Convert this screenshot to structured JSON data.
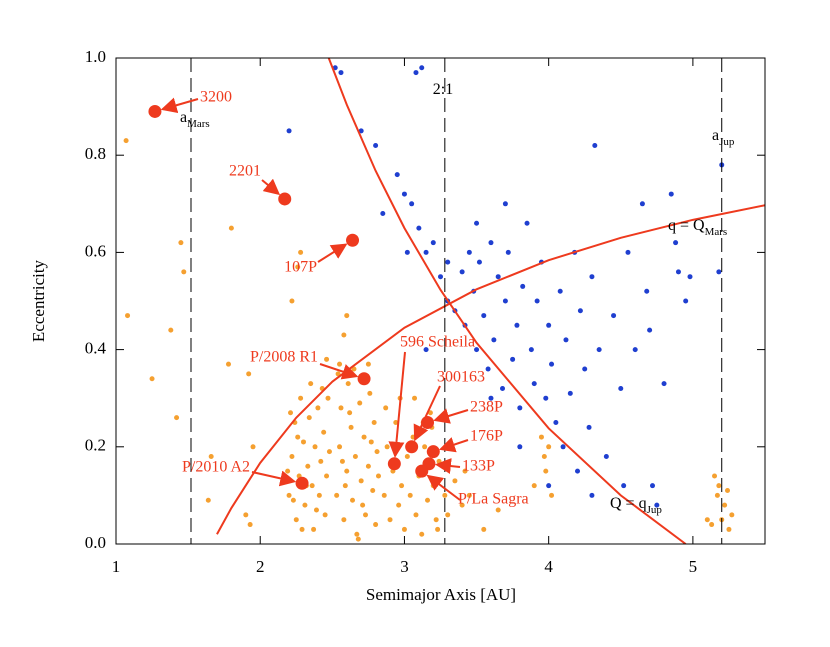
{
  "chart_data": {
    "type": "scatter",
    "xlabel": "Semimajor Axis [AU]",
    "ylabel": "Eccentricity",
    "xlim": [
      1,
      5.5
    ],
    "ylim": [
      0,
      1
    ],
    "xticks": [
      1,
      2,
      3,
      4,
      5
    ],
    "yticks": [
      {
        "value": 0,
        "label": "0.0"
      },
      0.2,
      0.4,
      0.6,
      0.8,
      {
        "value": 1,
        "label": "1.0"
      }
    ],
    "series": [
      {
        "color": "#f5a030",
        "x": [
          1.07,
          1.08,
          1.25,
          1.38,
          1.42,
          1.45,
          1.47,
          1.66,
          1.64,
          1.8,
          1.78,
          1.92,
          1.9,
          1.95,
          2.22,
          2.28,
          2.26,
          2.46,
          2.55,
          2.6,
          2.58,
          2.75,
          3.55,
          3.65,
          3.9,
          3.95,
          3.97,
          4.0,
          3.98,
          4.02,
          5.15,
          5.17,
          5.2,
          5.22,
          5.25,
          5.27,
          5.13,
          5.18,
          5.24,
          5.1,
          1.93,
          2.2,
          2.22,
          2.24,
          2.25,
          2.27,
          2.28,
          2.3,
          2.31,
          2.33,
          2.34,
          2.36,
          2.37,
          2.38,
          2.4,
          2.41,
          2.42,
          2.44,
          2.45,
          2.46,
          2.47,
          2.21,
          2.23,
          2.29,
          2.35,
          2.39,
          2.43,
          2.26,
          2.32,
          2.19,
          2.48,
          2.53,
          2.55,
          2.56,
          2.58,
          2.6,
          2.61,
          2.63,
          2.64,
          2.66,
          2.67,
          2.69,
          2.7,
          2.72,
          2.73,
          2.75,
          2.76,
          2.78,
          2.79,
          2.8,
          2.81,
          2.54,
          2.59,
          2.65,
          2.71,
          2.77,
          2.62,
          2.68,
          2.57,
          2.74,
          2.82,
          2.86,
          2.88,
          2.9,
          2.92,
          2.94,
          2.96,
          2.98,
          3.0,
          3.02,
          3.04,
          3.06,
          3.08,
          3.1,
          3.12,
          3.14,
          3.16,
          3.18,
          3.2,
          3.22,
          3.24,
          2.87,
          2.97,
          3.07,
          3.13,
          3.19,
          3.23,
          3.28,
          3.3,
          3.35,
          3.4,
          3.42,
          3.45
        ],
        "values": [
          0.83,
          0.47,
          0.34,
          0.44,
          0.26,
          0.62,
          0.56,
          0.18,
          0.09,
          0.65,
          0.37,
          0.35,
          0.06,
          0.2,
          0.5,
          0.6,
          0.57,
          0.38,
          0.37,
          0.47,
          0.43,
          0.37,
          0.03,
          0.07,
          0.12,
          0.22,
          0.18,
          0.2,
          0.15,
          0.1,
          0.14,
          0.1,
          0.05,
          0.08,
          0.03,
          0.06,
          0.04,
          0.12,
          0.11,
          0.05,
          0.04,
          0.1,
          0.18,
          0.25,
          0.05,
          0.14,
          0.3,
          0.21,
          0.08,
          0.16,
          0.26,
          0.12,
          0.03,
          0.2,
          0.28,
          0.1,
          0.17,
          0.23,
          0.06,
          0.14,
          0.3,
          0.27,
          0.09,
          0.03,
          0.33,
          0.07,
          0.32,
          0.22,
          0.12,
          0.15,
          0.19,
          0.1,
          0.2,
          0.28,
          0.05,
          0.15,
          0.33,
          0.24,
          0.09,
          0.18,
          0.02,
          0.29,
          0.13,
          0.22,
          0.06,
          0.16,
          0.31,
          0.11,
          0.25,
          0.04,
          0.19,
          0.35,
          0.12,
          0.36,
          0.08,
          0.21,
          0.27,
          0.01,
          0.17,
          0.34,
          0.14,
          0.1,
          0.2,
          0.05,
          0.15,
          0.25,
          0.08,
          0.12,
          0.03,
          0.18,
          0.1,
          0.22,
          0.06,
          0.14,
          0.02,
          0.2,
          0.09,
          0.27,
          0.12,
          0.05,
          0.17,
          0.28,
          0.3,
          0.3,
          0.25,
          0.24,
          0.03,
          0.1,
          0.06,
          0.13,
          0.08,
          0.15,
          0.1
        ]
      },
      {
        "color": "#1f3fd0",
        "x": [
          2.52,
          2.56,
          2.2,
          2.7,
          3.12,
          3.08,
          2.8,
          2.95,
          3.0,
          3.05,
          2.85,
          3.1,
          3.15,
          3.2,
          3.02,
          3.25,
          3.3,
          3.35,
          3.4,
          3.42,
          3.45,
          3.48,
          3.5,
          3.52,
          3.55,
          3.58,
          3.6,
          3.62,
          3.65,
          3.68,
          3.7,
          3.72,
          3.75,
          3.78,
          3.8,
          3.82,
          3.85,
          3.88,
          3.9,
          3.92,
          3.95,
          3.98,
          4.0,
          4.02,
          4.05,
          4.08,
          4.1,
          4.12,
          4.15,
          4.18,
          4.2,
          4.22,
          4.25,
          4.28,
          4.3,
          4.32,
          4.35,
          4.4,
          4.45,
          4.5,
          4.52,
          4.55,
          4.6,
          4.65,
          4.68,
          4.7,
          4.72,
          4.75,
          4.8,
          4.85,
          4.88,
          4.9,
          4.95,
          4.98,
          5.2,
          5.18,
          4.3,
          4.0,
          3.8,
          3.6,
          3.5,
          3.7,
          3.3,
          3.15
        ],
        "values": [
          0.98,
          0.97,
          0.85,
          0.85,
          0.98,
          0.97,
          0.82,
          0.76,
          0.72,
          0.7,
          0.68,
          0.65,
          0.6,
          0.62,
          0.6,
          0.55,
          0.5,
          0.48,
          0.56,
          0.45,
          0.6,
          0.52,
          0.4,
          0.58,
          0.47,
          0.36,
          0.62,
          0.42,
          0.55,
          0.32,
          0.5,
          0.6,
          0.38,
          0.45,
          0.28,
          0.53,
          0.66,
          0.4,
          0.33,
          0.5,
          0.58,
          0.3,
          0.45,
          0.37,
          0.25,
          0.52,
          0.2,
          0.42,
          0.31,
          0.6,
          0.15,
          0.48,
          0.36,
          0.24,
          0.55,
          0.82,
          0.4,
          0.18,
          0.47,
          0.32,
          0.12,
          0.6,
          0.4,
          0.7,
          0.52,
          0.44,
          0.12,
          0.08,
          0.33,
          0.72,
          0.62,
          0.56,
          0.5,
          0.55,
          0.78,
          0.56,
          0.1,
          0.12,
          0.2,
          0.3,
          0.66,
          0.7,
          0.58,
          0.4
        ]
      }
    ],
    "objects": {
      "color": "#ee3a1e",
      "labels": [
        "3200",
        "2201",
        "107P",
        "P/2008 R1",
        "596 Scheila",
        "300163",
        "238P",
        "176P",
        "133P",
        "P/La Sagra",
        "P/2010 A2"
      ],
      "x": [
        1.27,
        2.17,
        2.64,
        2.72,
        2.93,
        3.05,
        3.16,
        3.2,
        3.17,
        3.12,
        2.29
      ],
      "values": [
        0.89,
        0.71,
        0.625,
        0.34,
        0.165,
        0.2,
        0.25,
        0.19,
        0.165,
        0.15,
        0.125
      ]
    },
    "curves": [
      {
        "label": "q = Q",
        "sub": "Mars",
        "color": "#ee3a1e",
        "x": [
          1.7,
          1.8,
          2.0,
          2.25,
          2.5,
          3.0,
          3.5,
          4.0,
          4.5,
          5.0,
          5.5
        ],
        "values": [
          0.02,
          0.074,
          0.167,
          0.26,
          0.334,
          0.445,
          0.524,
          0.584,
          0.63,
          0.667,
          0.697
        ]
      },
      {
        "label": "Q = q",
        "sub": "Jup",
        "color": "#ee3a1e",
        "x": [
          2.475,
          2.6,
          2.8,
          3.0,
          3.25,
          3.5,
          4.0,
          4.5,
          4.95
        ],
        "values": [
          1.0,
          0.904,
          0.768,
          0.65,
          0.523,
          0.414,
          0.238,
          0.1,
          0
        ]
      }
    ],
    "vlines": [
      {
        "x": 1.52,
        "label": "a",
        "sub": "Mars"
      },
      {
        "x": 3.28,
        "label": "2:1"
      },
      {
        "x": 5.2,
        "label": "a",
        "sub": "Jup"
      }
    ]
  }
}
